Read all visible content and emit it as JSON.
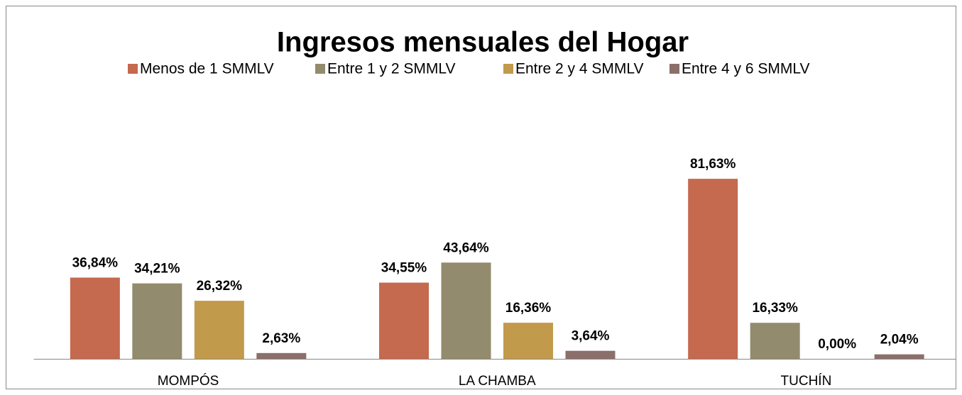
{
  "chart_data": {
    "type": "bar",
    "title": "Ingresos mensuales del Hogar",
    "categories": [
      "MOMPÓS",
      "LA CHAMBA",
      "TUCHÍN"
    ],
    "series": [
      {
        "name": "Menos de 1 SMMLV",
        "color": "#c5694f",
        "values": [
          36.84,
          34.55,
          81.63
        ],
        "value_labels": [
          "36,84%",
          "34,55%",
          "81,63%"
        ]
      },
      {
        "name": "Entre 1 y 2 SMMLV",
        "color": "#938b6d",
        "values": [
          34.21,
          43.64,
          16.33
        ],
        "value_labels": [
          "34,21%",
          "43,64%",
          "16,33%"
        ]
      },
      {
        "name": "Entre 2 y 4 SMMLV",
        "color": "#c29a4c",
        "values": [
          26.32,
          16.36,
          0.0
        ],
        "value_labels": [
          "26,32%",
          "16,36%",
          "0,00%"
        ]
      },
      {
        "name": "Entre 4 y 6 SMMLV",
        "color": "#8c6f6b",
        "values": [
          2.63,
          3.64,
          2.04
        ],
        "value_labels": [
          "2,63%",
          "3,64%",
          "2,04%"
        ]
      }
    ],
    "ylim": [
      0,
      100
    ],
    "legend": "top"
  }
}
